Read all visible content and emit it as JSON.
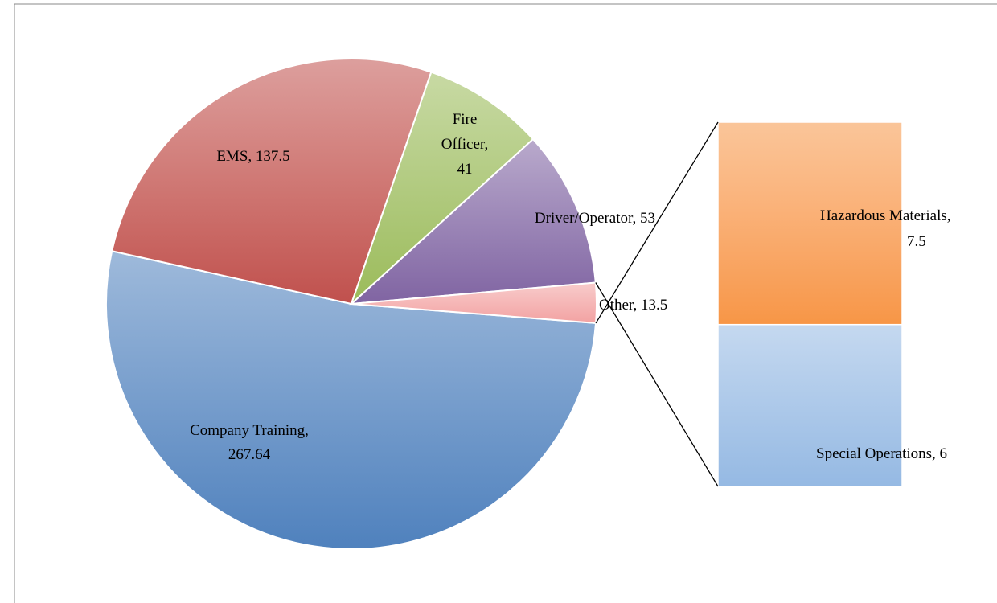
{
  "chart_data": {
    "type": "bar-of-pie",
    "categories": [
      "Company Training",
      "EMS",
      "Fire Officer",
      "Driver/Operator",
      "Other"
    ],
    "values": [
      267.64,
      137.5,
      41,
      53,
      13.5
    ],
    "value_labels": [
      "Company Training, 267.64",
      "EMS, 137.5",
      "Fire Officer, 41",
      "Driver/Operator, 53",
      "Other, 13.5"
    ],
    "colors": [
      "#4f81bd",
      "#c0504d",
      "#9bbb59",
      "#8064a2",
      "#f2a2a2"
    ],
    "secondary": {
      "categories": [
        "Special Operations",
        "Hazardous Materials"
      ],
      "values": [
        6,
        7.5
      ],
      "value_labels": [
        "Special Operations, 6",
        "Hazardous Materials, 7.5"
      ],
      "colors": [
        "#95b9e3",
        "#f79646"
      ]
    }
  }
}
